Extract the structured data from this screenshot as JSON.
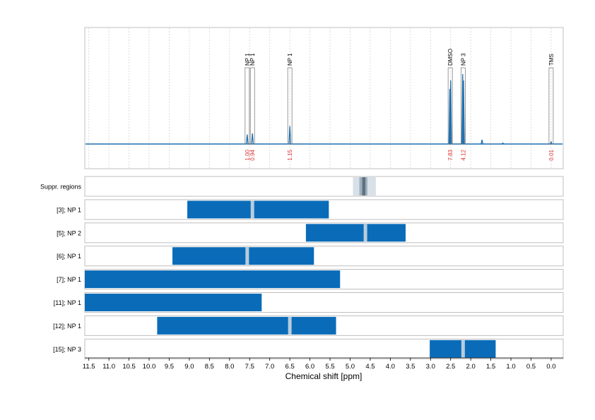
{
  "chart_data": {
    "type": "nmr-spectrum-with-regions",
    "xlabel": "Chemical shift [ppm]",
    "xlim": [
      11.6,
      -0.3
    ],
    "x_reversed": true,
    "xticks": [
      11.5,
      11.0,
      10.5,
      10.0,
      9.5,
      9.0,
      8.5,
      8.0,
      7.5,
      7.0,
      6.5,
      6.0,
      5.5,
      5.0,
      4.5,
      4.0,
      3.5,
      3.0,
      2.5,
      2.0,
      1.5,
      1.0,
      0.5,
      0.0
    ],
    "xtick_labels": [
      "11.5",
      "11.0",
      "10.5",
      "10.0",
      "9.5",
      "9.0",
      "8.5",
      "8.0",
      "7.5",
      "7.0",
      "6.5",
      "6.0",
      "5.5",
      "5.0",
      "4.5",
      "4.0",
      "3.5",
      "3.0",
      "2.5",
      "2.0",
      "1.5",
      "1.0",
      "0.5",
      "0.0"
    ],
    "grid": true,
    "spectrum": {
      "color": "#1f6fad",
      "baseline": 0,
      "peaks": [
        {
          "x": 7.56,
          "height": 0.09
        },
        {
          "x": 7.43,
          "height": 0.1
        },
        {
          "x": 6.5,
          "height": 0.17
        },
        {
          "x": 2.52,
          "height": 0.52
        },
        {
          "x": 2.5,
          "height": 0.6
        },
        {
          "x": 2.2,
          "height": 0.66
        },
        {
          "x": 2.18,
          "height": 0.6
        },
        {
          "x": 1.72,
          "height": 0.04
        },
        {
          "x": 1.2,
          "height": 0.01
        },
        {
          "x": 0.0,
          "height": 0.02
        }
      ]
    },
    "peak_labels": [
      {
        "x": 7.56,
        "label": "NP 1",
        "integral": "1.00"
      },
      {
        "x": 7.43,
        "label": "NP 1",
        "integral": "0.94"
      },
      {
        "x": 6.5,
        "label": "NP 1",
        "integral": "1.15"
      },
      {
        "x": 2.51,
        "label": "DMSO",
        "integral": "7.83"
      },
      {
        "x": 2.19,
        "label": "NP 3",
        "integral": "4.12"
      },
      {
        "x": 0.0,
        "label": "TMS",
        "integral": "0.01"
      }
    ],
    "suppressed_regions": {
      "label": "Suppr. regions",
      "outer": [
        4.93,
        4.36
      ],
      "middle": [
        4.77,
        4.57
      ],
      "inner": [
        4.7,
        4.62
      ]
    },
    "region_rows": [
      {
        "label": "[3]; NP 1",
        "range": [
          9.05,
          5.53
        ],
        "center": 7.43
      },
      {
        "label": "[5]; NP 2",
        "range": [
          6.1,
          3.62
        ],
        "center": 4.62
      },
      {
        "label": "[6]; NP 1",
        "range": [
          9.42,
          5.9
        ],
        "center": 7.56
      },
      {
        "label": "[7]; NP 1",
        "range": [
          11.6,
          5.25
        ],
        "center": null
      },
      {
        "label": "[11]; NP 1",
        "range": [
          11.6,
          7.2
        ],
        "center": null
      },
      {
        "label": "[12]; NP 1",
        "range": [
          9.8,
          5.35
        ],
        "center": 6.5
      },
      {
        "label": "[15]; NP 3",
        "range": [
          3.02,
          1.38
        ],
        "center": 2.19
      }
    ],
    "colors": {
      "region_fill": "#0a6cb8",
      "center_line": "#b8ccdc",
      "suppr_outer": "#d8e0e8",
      "suppr_middle": "#9fb0be",
      "suppr_inner": "#5f7280",
      "integral_text": "#e03030",
      "peak_box": "#707070"
    }
  }
}
